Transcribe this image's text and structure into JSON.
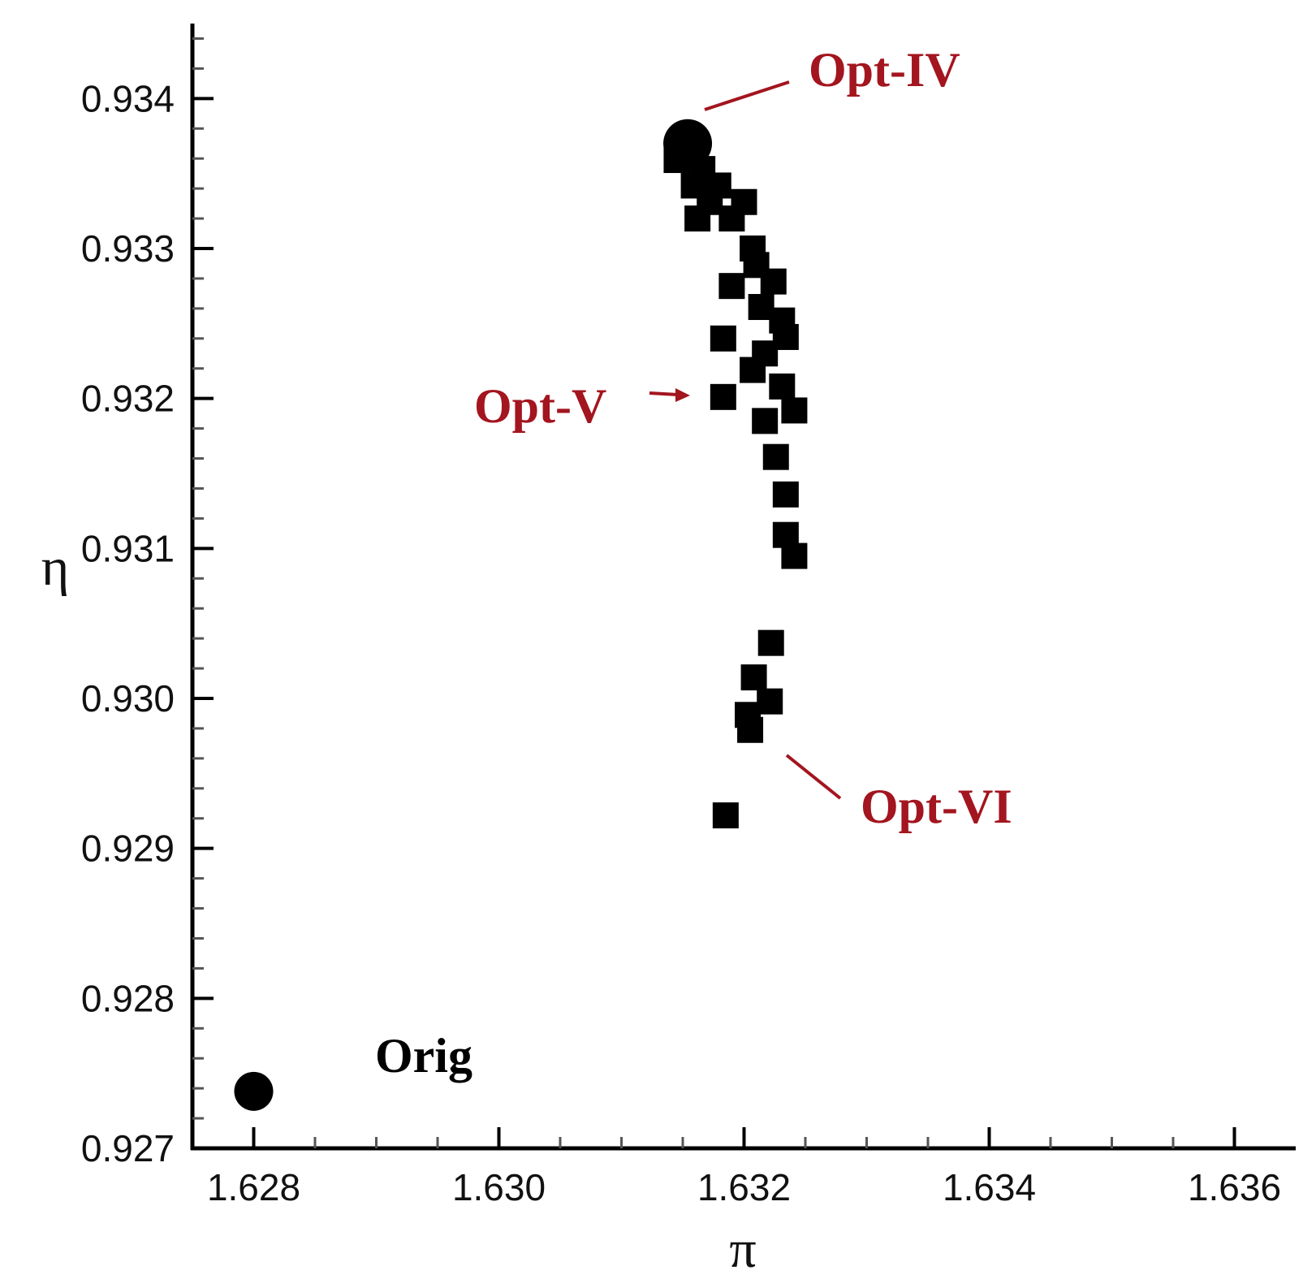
{
  "chart_data": {
    "type": "scatter",
    "xlabel": "π",
    "ylabel": "η",
    "xlim": [
      1.6275,
      1.6365
    ],
    "ylim": [
      0.927,
      0.9345
    ],
    "xticks": [
      1.628,
      {
        "value": 1.63,
        "label": "1.630"
      },
      1.632,
      1.634,
      1.636
    ],
    "yticks": [
      0.927,
      0.928,
      0.929,
      {
        "value": 0.93,
        "label": "0.930"
      },
      0.931,
      0.932,
      0.933,
      0.934
    ],
    "xminorticks": [
      1.6285,
      1.629,
      1.6295,
      1.6305,
      1.631,
      1.6315,
      1.6325,
      1.633,
      1.6335,
      1.6345,
      1.635,
      1.6355
    ],
    "yminorticks": [
      0.9272,
      0.9274,
      0.9276,
      0.9278,
      0.9282,
      0.9284,
      0.9286,
      0.9288,
      0.9292,
      0.9294,
      0.9296,
      0.9298,
      0.9302,
      0.9304,
      0.9306,
      0.9308,
      0.9312,
      0.9314,
      0.9316,
      0.9318,
      0.9322,
      0.9324,
      0.9326,
      0.9328,
      0.9332,
      0.9334,
      0.9336,
      0.9338,
      0.9342,
      0.9344
    ],
    "series": [
      {
        "marker": "square",
        "color": "#000000",
        "x": [
          1.63145,
          1.63166,
          1.63159,
          1.63179,
          1.63172,
          1.632,
          1.63162,
          1.6319,
          1.63207,
          1.6321,
          1.6319,
          1.63224,
          1.63214,
          1.63231,
          1.63234,
          1.63183,
          1.63217,
          1.63207,
          1.63231,
          1.63183,
          1.63241,
          1.63217,
          1.63226,
          1.63234,
          1.63234,
          1.63241,
          1.63222,
          1.63208,
          1.63221,
          1.63203,
          1.63205,
          1.63185
        ],
        "values": [
          0.93359,
          0.93353,
          0.93342,
          0.93342,
          0.93331,
          0.93331,
          0.9332,
          0.9332,
          0.933,
          0.93289,
          0.93275,
          0.93278,
          0.93261,
          0.93252,
          0.93241,
          0.9324,
          0.9323,
          0.93219,
          0.93208,
          0.93201,
          0.93192,
          0.93185,
          0.93161,
          0.93136,
          0.93109,
          0.93095,
          0.93037,
          0.93014,
          0.92998,
          0.92989,
          0.92979,
          0.92922
        ]
      },
      {
        "marker": "circle",
        "color": "#000000",
        "x": [
          1.628,
          1.63154
        ],
        "values": [
          0.92738,
          0.9337
        ]
      }
    ],
    "annotations": [
      {
        "text": "Opt-IV",
        "color": "#a3151f"
      },
      {
        "text": "Opt-V",
        "color": "#a3151f"
      },
      {
        "text": "Opt-VI",
        "color": "#a3151f"
      },
      {
        "text": "Orig",
        "color": "#000000"
      }
    ]
  }
}
